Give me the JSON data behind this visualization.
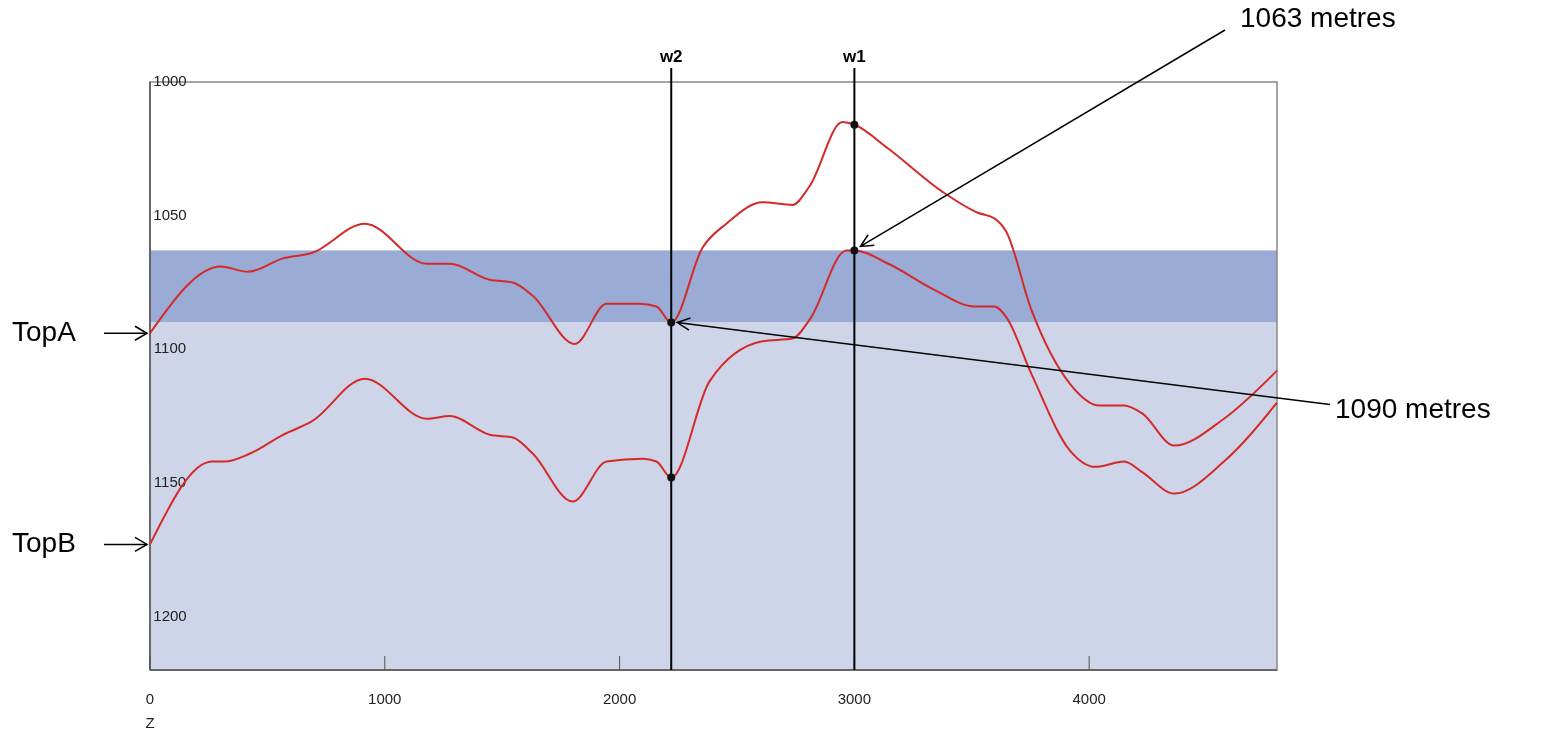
{
  "chart_data": {
    "type": "line",
    "xlabel": "Z",
    "xlim": [
      0,
      4800
    ],
    "xticks": [
      0,
      1000,
      2000,
      3000,
      4000
    ],
    "ylim": [
      1220,
      1000
    ],
    "yticks": [
      1000,
      1050,
      1100,
      1150,
      1200
    ],
    "series": [
      {
        "color": "#d42a2a",
        "x": [
          0,
          302,
          417,
          566,
          689,
          915,
          1179,
          1277,
          1447,
          1545,
          1630,
          1809,
          1945,
          2085,
          2157,
          2220,
          2353,
          2455,
          2609,
          2736,
          2809,
          2949,
          3000,
          3145,
          3374,
          3528,
          3596,
          3647,
          3753,
          3919,
          4043,
          4149,
          4226,
          4362,
          4574,
          4800
        ],
        "values": [
          1094,
          1069,
          1071,
          1066,
          1064,
          1053,
          1068,
          1068,
          1074,
          1075,
          1080,
          1098,
          1083,
          1083,
          1084,
          1090,
          1062,
          1053,
          1045,
          1046,
          1039,
          1015,
          1016,
          1025,
          1041,
          1049,
          1051,
          1056,
          1085,
          1113,
          1121,
          1121,
          1124,
          1136,
          1126,
          1108
        ]
      },
      {
        "color": "#d42a2a",
        "x": [
          0,
          264,
          319,
          426,
          566,
          689,
          915,
          1179,
          1277,
          1447,
          1545,
          1630,
          1800,
          1945,
          2098,
          2157,
          2220,
          2383,
          2609,
          2736,
          2809,
          2966,
          3000,
          3145,
          3345,
          3511,
          3596,
          3647,
          3753,
          3919,
          4026,
          4149,
          4226,
          4362,
          4574,
          4800
        ],
        "values": [
          1173,
          1142,
          1142,
          1139,
          1132,
          1127,
          1111,
          1126,
          1125,
          1132,
          1133,
          1139,
          1157,
          1142,
          1141,
          1142,
          1148,
          1112,
          1097,
          1096,
          1089,
          1063,
          1063,
          1068,
          1078,
          1084,
          1084,
          1088,
          1109,
          1138,
          1144,
          1142,
          1146,
          1154,
          1142,
          1120
        ]
      },
      {
        "type": "scatter",
        "color": "#111111",
        "marker": "circle",
        "x": [
          3000,
          3000,
          2220,
          2220
        ],
        "values": [
          1016,
          1063,
          1090,
          1148
        ]
      }
    ],
    "bands": [
      {
        "axis": "y",
        "from": 1063,
        "to": 1090,
        "color": "#9aabd5"
      },
      {
        "axis": "y",
        "from": 1090,
        "to": 1220,
        "color": "#ced5e9"
      }
    ],
    "ref_lines": [
      {
        "axis": "x",
        "value": 2220,
        "label": "w2",
        "color": "#000000"
      },
      {
        "axis": "x",
        "value": 3000,
        "label": "w1",
        "color": "#000000"
      }
    ],
    "annotations": [
      {
        "text": "TopA",
        "x": 0,
        "y": 1094
      },
      {
        "text": "TopB",
        "x": 0,
        "y": 1173
      },
      {
        "text": "1063 metres",
        "x": 3000,
        "y": 1063
      },
      {
        "text": "1090 metres",
        "x": 2220,
        "y": 1090
      }
    ]
  }
}
